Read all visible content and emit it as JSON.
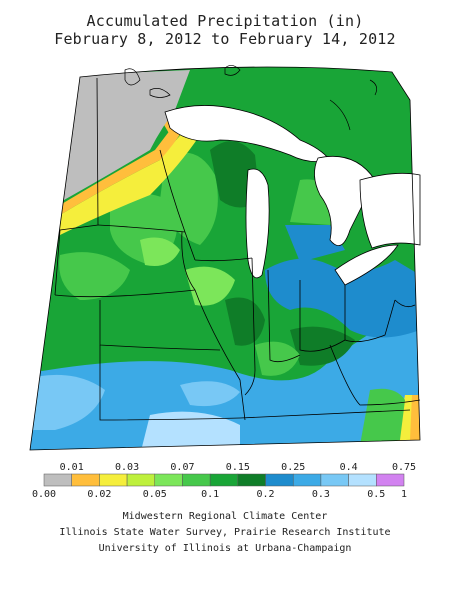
{
  "title": {
    "line1": "Accumulated Precipitation (in)",
    "line2": "February 8, 2012 to February 14, 2012"
  },
  "legend": {
    "top_labels": [
      "0.01",
      "0.03",
      "0.07",
      "0.15",
      "0.25",
      "0.4",
      "0.75"
    ],
    "bottom_labels": [
      "0.00",
      "0.02",
      "0.05",
      "0.1",
      "0.2",
      "0.3",
      "0.5",
      "1"
    ],
    "colors": [
      "#bebebe",
      "#ffbe3c",
      "#f5ee3c",
      "#bef03c",
      "#7ce65a",
      "#46c84b",
      "#19a537",
      "#0f7d28",
      "#1e8ccd",
      "#3caae6",
      "#78c8f5",
      "#b4e1ff",
      "#d282f0"
    ]
  },
  "credits": {
    "line1": "Midwestern Regional Climate Center",
    "line2": "Illinois State Water Survey, Prairie Research Institute",
    "line3": "University of Illinois at Urbana-Champaign"
  },
  "map": {
    "region": "Upper Midwest / Great Lakes",
    "fill_colors": {
      "dry": "#bebebe",
      "orange": "#ffbe3c",
      "yellow": "#f5ee3c",
      "light_green": "#7ce65a",
      "green": "#46c84b",
      "mid_green": "#19a537",
      "dark_green": "#0f7d28",
      "blue": "#1e8ccd",
      "light_blue": "#3caae6",
      "pale_blue": "#78c8f5",
      "lake": "#ffffff",
      "boundary": "#000000"
    }
  }
}
